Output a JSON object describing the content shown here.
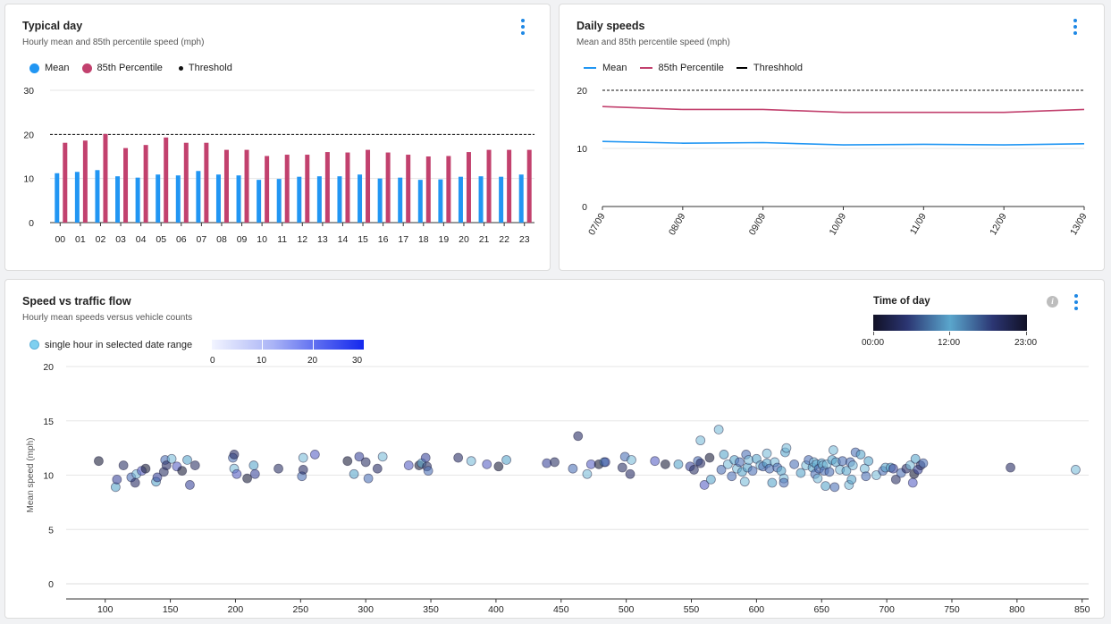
{
  "colors": {
    "mean": "#2196f3",
    "p85": "#c2416e",
    "threshold": "#111111",
    "grid": "#e6e6e6",
    "kebab": "#1e88e5"
  },
  "cards": {
    "typical_day": {
      "title": "Typical day",
      "subtitle": "Hourly mean and 85th percentile speed (mph)",
      "legend": {
        "mean": "Mean",
        "p85": "85th Percentile",
        "threshold": "Threshold"
      }
    },
    "daily_speeds": {
      "title": "Daily speeds",
      "subtitle": "Mean and 85th percentile speed (mph)",
      "legend": {
        "mean": "Mean",
        "p85": "85th Percentile",
        "threshold": "Threshhold"
      }
    },
    "scatter": {
      "title": "Speed vs traffic flow",
      "subtitle": "Hourly mean speeds versus vehicle counts",
      "point_legend": "single hour in selected date range",
      "count_legend_ticks": [
        "0",
        "10",
        "20",
        "30"
      ],
      "time_of_day": {
        "title": "Time of day",
        "ticks": [
          "00:00",
          "12:00",
          "23:00"
        ]
      }
    }
  },
  "chart_data": [
    {
      "type": "bar",
      "title": "Typical day",
      "categories": [
        "00",
        "01",
        "02",
        "03",
        "04",
        "05",
        "06",
        "07",
        "08",
        "09",
        "10",
        "11",
        "12",
        "13",
        "14",
        "15",
        "16",
        "17",
        "18",
        "19",
        "20",
        "21",
        "22",
        "23"
      ],
      "series": [
        {
          "name": "Mean",
          "values": [
            11.2,
            11.5,
            11.9,
            10.5,
            10.2,
            10.9,
            10.7,
            11.7,
            10.9,
            10.7,
            9.7,
            9.9,
            10.4,
            10.5,
            10.5,
            10.9,
            10.0,
            10.2,
            9.7,
            9.8,
            10.4,
            10.5,
            10.4,
            10.9
          ]
        },
        {
          "name": "85th Percentile",
          "values": [
            18.1,
            18.6,
            20.1,
            16.9,
            17.6,
            19.3,
            18.1,
            18.1,
            16.5,
            16.5,
            15.1,
            15.4,
            15.4,
            16.0,
            15.9,
            16.5,
            15.9,
            15.4,
            15.0,
            15.1,
            16.0,
            16.5,
            16.5,
            16.5
          ]
        }
      ],
      "threshold": 20,
      "ylim": [
        0,
        30
      ],
      "yticks": [
        0,
        10,
        20,
        30
      ],
      "grid": true,
      "legend_position": "top-left"
    },
    {
      "type": "line",
      "title": "Daily speeds",
      "x": [
        "07/09",
        "08/09",
        "09/09",
        "10/09",
        "11/09",
        "12/09",
        "13/09"
      ],
      "series": [
        {
          "name": "Mean",
          "values": [
            11.2,
            10.9,
            11.0,
            10.6,
            10.7,
            10.6,
            10.8
          ]
        },
        {
          "name": "85th Percentile",
          "values": [
            17.2,
            16.7,
            16.7,
            16.2,
            16.2,
            16.2,
            16.7
          ]
        }
      ],
      "threshold": 20,
      "ylim": [
        0,
        20
      ],
      "yticks": [
        0,
        10,
        20
      ],
      "grid": true,
      "legend_position": "top-left"
    },
    {
      "type": "scatter",
      "title": "Speed vs traffic flow",
      "ylabel": "Mean speed (mph)",
      "xlim": [
        70,
        855
      ],
      "ylim": [
        0,
        20
      ],
      "xticks": [
        100,
        150,
        200,
        250,
        300,
        350,
        400,
        450,
        500,
        550,
        600,
        650,
        700,
        750,
        800,
        850
      ],
      "yticks": [
        0,
        5,
        10,
        15,
        20
      ],
      "grid": true,
      "points": [
        [
          95,
          11.3
        ],
        [
          108,
          8.9
        ],
        [
          109,
          9.6
        ],
        [
          114,
          10.9
        ],
        [
          120,
          9.8
        ],
        [
          123,
          9.3
        ],
        [
          124,
          10.1
        ],
        [
          128,
          10.4
        ],
        [
          131,
          10.6
        ],
        [
          139,
          9.4
        ],
        [
          140,
          9.8
        ],
        [
          145,
          10.3
        ],
        [
          146,
          11.4
        ],
        [
          147,
          10.9
        ],
        [
          151,
          11.5
        ],
        [
          155,
          10.8
        ],
        [
          159,
          10.4
        ],
        [
          163,
          11.4
        ],
        [
          165,
          9.1
        ],
        [
          169,
          10.9
        ],
        [
          198,
          11.6
        ],
        [
          199,
          11.9
        ],
        [
          199,
          10.6
        ],
        [
          201,
          10.1
        ],
        [
          209,
          9.7
        ],
        [
          214,
          10.9
        ],
        [
          215,
          10.1
        ],
        [
          233,
          10.6
        ],
        [
          251,
          9.9
        ],
        [
          252,
          10.5
        ],
        [
          252,
          11.6
        ],
        [
          261,
          11.9
        ],
        [
          286,
          11.3
        ],
        [
          291,
          10.1
        ],
        [
          295,
          11.7
        ],
        [
          300,
          11.2
        ],
        [
          302,
          9.7
        ],
        [
          309,
          10.6
        ],
        [
          313,
          11.7
        ],
        [
          333,
          10.9
        ],
        [
          341,
          10.9
        ],
        [
          343,
          11.1
        ],
        [
          346,
          11.6
        ],
        [
          347,
          10.8
        ],
        [
          348,
          10.4
        ],
        [
          371,
          11.6
        ],
        [
          381,
          11.3
        ],
        [
          393,
          11.0
        ],
        [
          402,
          10.8
        ],
        [
          408,
          11.4
        ],
        [
          439,
          11.1
        ],
        [
          445,
          11.2
        ],
        [
          459,
          10.6
        ],
        [
          463,
          13.6
        ],
        [
          470,
          10.1
        ],
        [
          473,
          11.0
        ],
        [
          479,
          11.0
        ],
        [
          483,
          11.2
        ],
        [
          484,
          11.2
        ],
        [
          497,
          10.7
        ],
        [
          499,
          11.7
        ],
        [
          503,
          10.1
        ],
        [
          504,
          11.4
        ],
        [
          522,
          11.3
        ],
        [
          530,
          11.0
        ],
        [
          540,
          11.0
        ],
        [
          549,
          10.8
        ],
        [
          552,
          10.5
        ],
        [
          555,
          11.3
        ],
        [
          557,
          11.1
        ],
        [
          557,
          13.2
        ],
        [
          560,
          9.1
        ],
        [
          564,
          11.6
        ],
        [
          565,
          9.6
        ],
        [
          571,
          14.2
        ],
        [
          573,
          10.5
        ],
        [
          575,
          11.9
        ],
        [
          578,
          11.0
        ],
        [
          581,
          9.9
        ],
        [
          583,
          11.4
        ],
        [
          585,
          10.6
        ],
        [
          587,
          11.2
        ],
        [
          589,
          10.3
        ],
        [
          591,
          9.4
        ],
        [
          592,
          11.9
        ],
        [
          593,
          10.7
        ],
        [
          594,
          11.4
        ],
        [
          597,
          10.4
        ],
        [
          600,
          11.5
        ],
        [
          603,
          10.9
        ],
        [
          605,
          10.8
        ],
        [
          608,
          11.1
        ],
        [
          608,
          12.0
        ],
        [
          610,
          10.6
        ],
        [
          612,
          9.3
        ],
        [
          614,
          11.2
        ],
        [
          616,
          10.7
        ],
        [
          619,
          10.4
        ],
        [
          621,
          9.7
        ],
        [
          621,
          9.3
        ],
        [
          622,
          12.1
        ],
        [
          623,
          12.5
        ],
        [
          629,
          11.0
        ],
        [
          634,
          10.2
        ],
        [
          638,
          10.9
        ],
        [
          640,
          11.4
        ],
        [
          643,
          10.7
        ],
        [
          644,
          11.2
        ],
        [
          645,
          10.1
        ],
        [
          646,
          11.0
        ],
        [
          647,
          9.7
        ],
        [
          648,
          10.6
        ],
        [
          650,
          11.1
        ],
        [
          651,
          10.9
        ],
        [
          652,
          10.4
        ],
        [
          653,
          9.0
        ],
        [
          654,
          11.0
        ],
        [
          656,
          10.3
        ],
        [
          658,
          11.4
        ],
        [
          659,
          12.3
        ],
        [
          660,
          8.9
        ],
        [
          661,
          11.2
        ],
        [
          664,
          10.5
        ],
        [
          666,
          11.3
        ],
        [
          669,
          10.4
        ],
        [
          671,
          9.1
        ],
        [
          672,
          11.2
        ],
        [
          673,
          9.6
        ],
        [
          674,
          10.9
        ],
        [
          676,
          12.1
        ],
        [
          680,
          11.9
        ],
        [
          683,
          10.6
        ],
        [
          684,
          9.9
        ],
        [
          686,
          11.3
        ],
        [
          692,
          10.0
        ],
        [
          697,
          10.4
        ],
        [
          699,
          10.7
        ],
        [
          703,
          10.7
        ],
        [
          705,
          10.6
        ],
        [
          707,
          9.6
        ],
        [
          711,
          10.2
        ],
        [
          715,
          10.6
        ],
        [
          718,
          10.9
        ],
        [
          720,
          9.3
        ],
        [
          721,
          10.1
        ],
        [
          722,
          11.5
        ],
        [
          724,
          10.5
        ],
        [
          726,
          10.9
        ],
        [
          728,
          11.1
        ],
        [
          795,
          10.7
        ],
        [
          845,
          10.5
        ]
      ]
    }
  ]
}
